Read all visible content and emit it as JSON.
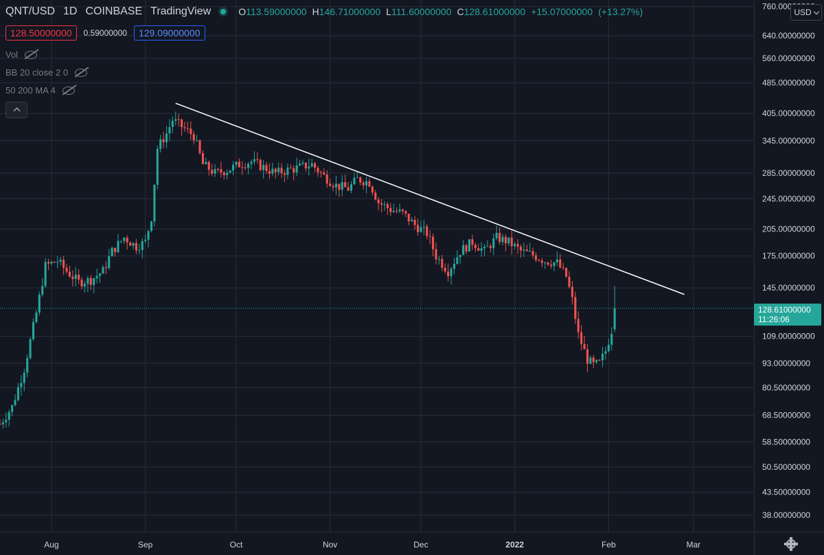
{
  "header": {
    "symbol": "QNT/USD",
    "interval": "1D",
    "exchange": "COINBASE",
    "source": "TradingView",
    "ohlc": {
      "o_label": "O",
      "o_value": "113.59000000",
      "h_label": "H",
      "h_value": "146.71000000",
      "l_label": "L",
      "l_value": "111.60000000",
      "c_label": "C",
      "c_value": "128.61000000",
      "change": "+15.07000000",
      "change_pct": "(+13.27%)"
    }
  },
  "quote": {
    "sell": "128.50000000",
    "spread": "0.59000000",
    "buy": "129.09000000"
  },
  "indicators": [
    {
      "label": "Vol"
    },
    {
      "label": "BB 20 close 2 0"
    },
    {
      "label": "50 200 MA 4"
    }
  ],
  "currency": "USD",
  "last_price": {
    "value": "128.61000000",
    "countdown": "11:26:06"
  },
  "colors": {
    "up": "#26a69a",
    "down": "#ef5350",
    "trendline": "#ffffff",
    "grid": "#2a2e39",
    "background": "#131722"
  },
  "chart_data": {
    "type": "candlestick",
    "y_scale": "log",
    "ylim": [
      34.5,
      790
    ],
    "x_range": [
      "2021-07-15",
      "2022-03-21"
    ],
    "y_ticks": [
      {
        "value": 760,
        "label": "760.00000000"
      },
      {
        "value": 640,
        "label": "640.00000000"
      },
      {
        "value": 560,
        "label": "560.00000000"
      },
      {
        "value": 485,
        "label": "485.00000000"
      },
      {
        "value": 405,
        "label": "405.00000000"
      },
      {
        "value": 345,
        "label": "345.00000000"
      },
      {
        "value": 285,
        "label": "285.00000000"
      },
      {
        "value": 245,
        "label": "245.00000000"
      },
      {
        "value": 205,
        "label": "205.00000000"
      },
      {
        "value": 175,
        "label": "175.00000000"
      },
      {
        "value": 145,
        "label": "145.00000000"
      },
      {
        "value": 109,
        "label": "109.00000000"
      },
      {
        "value": 93,
        "label": "93.00000000"
      },
      {
        "value": 80.5,
        "label": "80.50000000"
      },
      {
        "value": 68.5,
        "label": "68.50000000"
      },
      {
        "value": 58.5,
        "label": "58.50000000"
      },
      {
        "value": 50.5,
        "label": "50.50000000"
      },
      {
        "value": 43.5,
        "label": "43.50000000"
      },
      {
        "value": 38,
        "label": "38.00000000"
      }
    ],
    "x_ticks": [
      {
        "date": "2021-08-01",
        "label": "Aug"
      },
      {
        "date": "2021-09-01",
        "label": "Sep"
      },
      {
        "date": "2021-10-01",
        "label": "Oct"
      },
      {
        "date": "2021-11-01",
        "label": "Nov"
      },
      {
        "date": "2021-12-01",
        "label": "Dec"
      },
      {
        "date": "2022-01-01",
        "label": "2022"
      },
      {
        "date": "2022-02-01",
        "label": "Feb"
      },
      {
        "date": "2022-03-01",
        "label": "Mar"
      }
    ],
    "price_path": [
      [
        "2021-07-15",
        65
      ],
      [
        "2021-07-19",
        72
      ],
      [
        "2021-07-23",
        90
      ],
      [
        "2021-07-27",
        125
      ],
      [
        "2021-07-30",
        165
      ],
      [
        "2021-08-03",
        170
      ],
      [
        "2021-08-06",
        160
      ],
      [
        "2021-08-10",
        150
      ],
      [
        "2021-08-14",
        152
      ],
      [
        "2021-08-18",
        160
      ],
      [
        "2021-08-21",
        180
      ],
      [
        "2021-08-25",
        195
      ],
      [
        "2021-08-29",
        185
      ],
      [
        "2021-09-01",
        190
      ],
      [
        "2021-09-03",
        220
      ],
      [
        "2021-09-05",
        330
      ],
      [
        "2021-09-08",
        360
      ],
      [
        "2021-09-10",
        390
      ],
      [
        "2021-09-13",
        375
      ],
      [
        "2021-09-17",
        355
      ],
      [
        "2021-09-20",
        300
      ],
      [
        "2021-09-24",
        285
      ],
      [
        "2021-09-28",
        290
      ],
      [
        "2021-10-02",
        300
      ],
      [
        "2021-10-06",
        305
      ],
      [
        "2021-10-10",
        295
      ],
      [
        "2021-10-14",
        285
      ],
      [
        "2021-10-18",
        290
      ],
      [
        "2021-10-22",
        295
      ],
      [
        "2021-10-26",
        300
      ],
      [
        "2021-10-30",
        280
      ],
      [
        "2021-11-03",
        265
      ],
      [
        "2021-11-07",
        260
      ],
      [
        "2021-11-10",
        275
      ],
      [
        "2021-11-14",
        270
      ],
      [
        "2021-11-17",
        240
      ],
      [
        "2021-11-21",
        230
      ],
      [
        "2021-11-25",
        225
      ],
      [
        "2021-11-29",
        210
      ],
      [
        "2021-12-03",
        200
      ],
      [
        "2021-12-06",
        175
      ],
      [
        "2021-12-10",
        160
      ],
      [
        "2021-12-14",
        180
      ],
      [
        "2021-12-18",
        190
      ],
      [
        "2021-12-22",
        180
      ],
      [
        "2021-12-26",
        195
      ],
      [
        "2021-12-30",
        190
      ],
      [
        "2022-01-03",
        180
      ],
      [
        "2022-01-07",
        176
      ],
      [
        "2022-01-11",
        170
      ],
      [
        "2022-01-15",
        168
      ],
      [
        "2022-01-18",
        155
      ],
      [
        "2022-01-20",
        135
      ],
      [
        "2022-01-22",
        110
      ],
      [
        "2022-01-25",
        95
      ],
      [
        "2022-01-27",
        92
      ],
      [
        "2022-01-29",
        93
      ],
      [
        "2022-01-31",
        100
      ],
      [
        "2022-02-02",
        113
      ],
      [
        "2022-02-03",
        128.61
      ]
    ],
    "trendline": {
      "start": [
        "2021-09-11",
        430
      ],
      "end": [
        "2022-02-26",
        139.5
      ]
    }
  }
}
